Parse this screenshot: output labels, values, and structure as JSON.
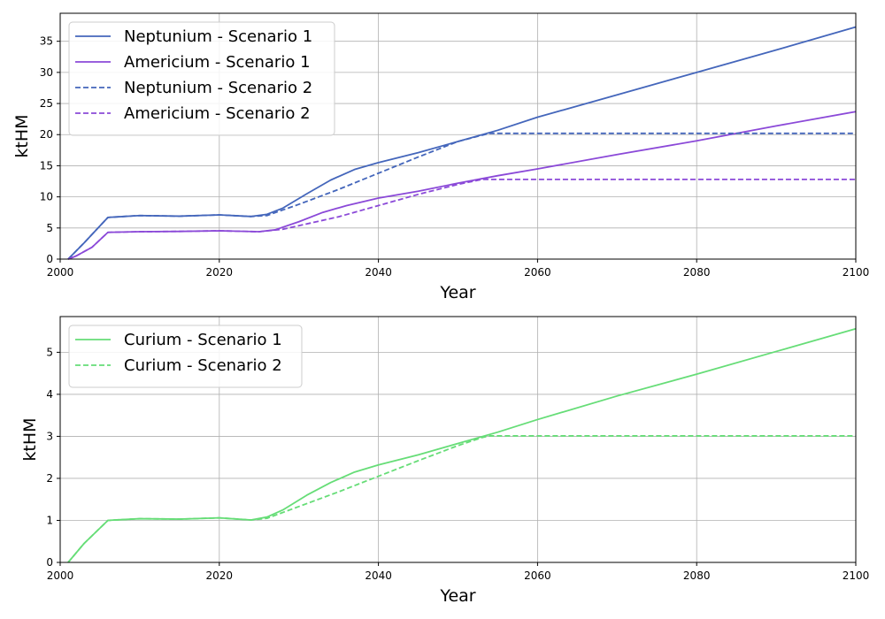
{
  "chart_data": [
    {
      "type": "line",
      "xlabel": "Year",
      "ylabel": "ktHM",
      "xlim": [
        2000,
        2100
      ],
      "ylim": [
        0,
        39.5
      ],
      "xticks": [
        2000,
        2020,
        2040,
        2060,
        2080,
        2100
      ],
      "yticks": [
        0,
        5,
        10,
        15,
        20,
        25,
        30,
        35
      ],
      "grid": true,
      "legend": "top-left",
      "series": [
        {
          "name": "Neptunium - Scenario 1",
          "color": "#4466bb",
          "dash": "solid",
          "points": [
            [
              2001,
              0
            ],
            [
              2003,
              2.6
            ],
            [
              2006,
              6.7
            ],
            [
              2010,
              7.0
            ],
            [
              2015,
              6.9
            ],
            [
              2020,
              7.1
            ],
            [
              2024,
              6.85
            ],
            [
              2026,
              7.2
            ],
            [
              2028,
              8.2
            ],
            [
              2031,
              10.5
            ],
            [
              2034,
              12.7
            ],
            [
              2037,
              14.4
            ],
            [
              2040,
              15.5
            ],
            [
              2045,
              17.1
            ],
            [
              2050,
              18.9
            ],
            [
              2055,
              20.7
            ],
            [
              2060,
              22.8
            ],
            [
              2070,
              26.4
            ],
            [
              2080,
              30.0
            ],
            [
              2090,
              33.6
            ],
            [
              2100,
              37.3
            ]
          ]
        },
        {
          "name": "Americium - Scenario 1",
          "color": "#8b49d8",
          "dash": "solid",
          "points": [
            [
              2001,
              0
            ],
            [
              2002,
              0.5
            ],
            [
              2004,
              1.9
            ],
            [
              2006,
              4.3
            ],
            [
              2010,
              4.4
            ],
            [
              2015,
              4.45
            ],
            [
              2020,
              4.55
            ],
            [
              2025,
              4.4
            ],
            [
              2027,
              4.7
            ],
            [
              2030,
              6.0
            ],
            [
              2033,
              7.5
            ],
            [
              2036,
              8.6
            ],
            [
              2040,
              9.8
            ],
            [
              2045,
              10.9
            ],
            [
              2050,
              12.2
            ],
            [
              2055,
              13.4
            ],
            [
              2060,
              14.5
            ],
            [
              2070,
              16.8
            ],
            [
              2080,
              19.0
            ],
            [
              2090,
              21.4
            ],
            [
              2100,
              23.7
            ]
          ]
        },
        {
          "name": "Neptunium - Scenario 2",
          "color": "#4466bb",
          "dash": "dashed",
          "points": [
            [
              2001,
              0
            ],
            [
              2003,
              2.6
            ],
            [
              2006,
              6.7
            ],
            [
              2010,
              7.0
            ],
            [
              2015,
              6.9
            ],
            [
              2020,
              7.1
            ],
            [
              2024,
              6.85
            ],
            [
              2026,
              7.0
            ],
            [
              2030,
              8.8
            ],
            [
              2035,
              11.2
            ],
            [
              2040,
              13.8
            ],
            [
              2045,
              16.4
            ],
            [
              2050,
              18.9
            ],
            [
              2053,
              19.9
            ],
            [
              2054,
              20.2
            ],
            [
              2060,
              20.2
            ],
            [
              2080,
              20.2
            ],
            [
              2100,
              20.2
            ]
          ]
        },
        {
          "name": "Americium - Scenario 2",
          "color": "#8b49d8",
          "dash": "dashed",
          "points": [
            [
              2001,
              0
            ],
            [
              2002,
              0.5
            ],
            [
              2004,
              1.9
            ],
            [
              2006,
              4.3
            ],
            [
              2010,
              4.4
            ],
            [
              2015,
              4.45
            ],
            [
              2020,
              4.55
            ],
            [
              2025,
              4.4
            ],
            [
              2028,
              4.8
            ],
            [
              2035,
              6.8
            ],
            [
              2040,
              8.6
            ],
            [
              2045,
              10.4
            ],
            [
              2050,
              12.0
            ],
            [
              2053,
              12.8
            ],
            [
              2060,
              12.8
            ],
            [
              2080,
              12.8
            ],
            [
              2100,
              12.8
            ]
          ]
        }
      ]
    },
    {
      "type": "line",
      "xlabel": "Year",
      "ylabel": "ktHM",
      "xlim": [
        2000,
        2100
      ],
      "ylim": [
        0,
        5.85
      ],
      "xticks": [
        2000,
        2020,
        2040,
        2060,
        2080,
        2100
      ],
      "yticks": [
        0,
        1,
        2,
        3,
        4,
        5
      ],
      "grid": true,
      "legend": "top-left",
      "series": [
        {
          "name": "Curium - Scenario 1",
          "color": "#66dd77",
          "dash": "solid",
          "points": [
            [
              2001,
              0
            ],
            [
              2003,
              0.45
            ],
            [
              2006,
              1.0
            ],
            [
              2010,
              1.04
            ],
            [
              2015,
              1.03
            ],
            [
              2020,
              1.06
            ],
            [
              2024,
              1.01
            ],
            [
              2026,
              1.08
            ],
            [
              2028,
              1.25
            ],
            [
              2031,
              1.6
            ],
            [
              2034,
              1.9
            ],
            [
              2037,
              2.15
            ],
            [
              2040,
              2.32
            ],
            [
              2045,
              2.56
            ],
            [
              2050,
              2.83
            ],
            [
              2055,
              3.1
            ],
            [
              2060,
              3.4
            ],
            [
              2070,
              3.96
            ],
            [
              2080,
              4.48
            ],
            [
              2090,
              5.02
            ],
            [
              2100,
              5.56
            ]
          ]
        },
        {
          "name": "Curium - Scenario 2",
          "color": "#66dd77",
          "dash": "dashed",
          "points": [
            [
              2001,
              0
            ],
            [
              2003,
              0.45
            ],
            [
              2006,
              1.0
            ],
            [
              2010,
              1.04
            ],
            [
              2015,
              1.03
            ],
            [
              2020,
              1.06
            ],
            [
              2024,
              1.01
            ],
            [
              2026,
              1.05
            ],
            [
              2030,
              1.33
            ],
            [
              2035,
              1.68
            ],
            [
              2040,
              2.05
            ],
            [
              2045,
              2.42
            ],
            [
              2050,
              2.78
            ],
            [
              2053,
              2.97
            ],
            [
              2054,
              3.01
            ],
            [
              2060,
              3.01
            ],
            [
              2080,
              3.01
            ],
            [
              2100,
              3.01
            ]
          ]
        }
      ]
    }
  ]
}
